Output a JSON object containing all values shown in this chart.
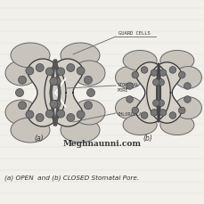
{
  "bg_color": "#f2f0ea",
  "line_color": "#666666",
  "dark_line": "#333333",
  "dot_fill": "#777777",
  "dot_edge": "#444444",
  "guard_fill": "#d4d0c8",
  "guard_fill_inner": "#b0aba0",
  "pore_dark": "#888080",
  "subsidiary_fill": "#c8c4bc",
  "subsidiary_edge": "#666666",
  "title": "Meghnaunni.com",
  "label_guard": "GUARD CELLS",
  "label_stomatal": "STOMATAL\nPORE",
  "label_chloro": "CHLOROPLAST",
  "caption": "(a) OPEN  and (b) CLOSED Stomatal Pore.",
  "label_a": "(a)",
  "label_b": "(b)"
}
